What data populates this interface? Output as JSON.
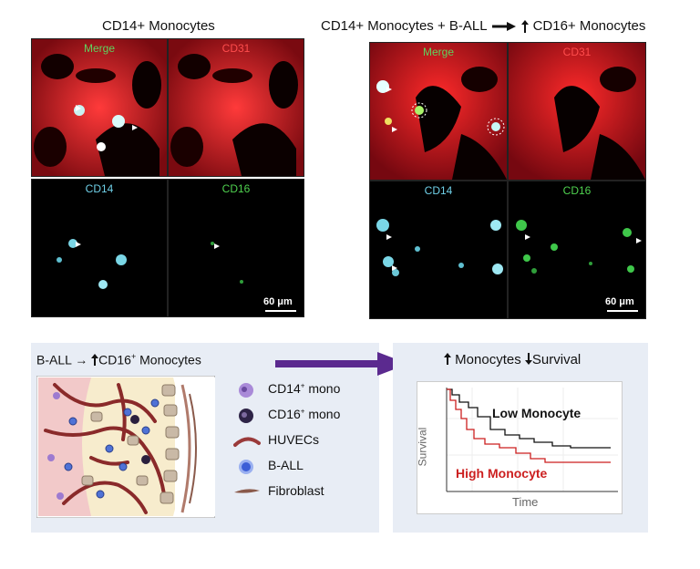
{
  "left_group": {
    "title": "CD14+ Monocytes",
    "panels": {
      "merge": "Merge",
      "cd31": "CD31",
      "cd14": "CD14",
      "cd16": "CD16"
    },
    "scale": "60 μm"
  },
  "right_group": {
    "title_prefix": "CD14+ Monocytes + B-ALL",
    "title_suffix": "CD16+ Monocytes",
    "panels": {
      "merge": "Merge",
      "cd31": "CD31",
      "cd14": "CD14",
      "cd16": "CD16"
    },
    "scale": "60 μm"
  },
  "schematic": {
    "heading_prefix": "B-ALL →",
    "heading_main": "CD16",
    "heading_sup": "+",
    "heading_rest": " Monocytes",
    "legend": [
      {
        "text": "CD14",
        "sup": "+",
        "rest": " mono",
        "icon": "cd14-mono-icon"
      },
      {
        "text": "CD16",
        "sup": "+",
        "rest": " mono",
        "icon": "cd16-mono-icon"
      },
      {
        "text": "HUVECs",
        "sup": "",
        "rest": "",
        "icon": "huvec-icon"
      },
      {
        "text": "B-ALL",
        "sup": "",
        "rest": "",
        "icon": "b-all-icon"
      },
      {
        "text": "Fibroblast",
        "sup": "",
        "rest": "",
        "icon": "fibroblast-icon"
      }
    ]
  },
  "survival": {
    "heading_a": "Monocytes",
    "heading_b": "Survival",
    "ylabel": "Survival",
    "xlabel": "Time",
    "low_label": "Low Monocyte",
    "high_label": "High Monocyte",
    "colors": {
      "low": "#111111",
      "high": "#cc1f1f"
    }
  },
  "colors": {
    "arrow": "#5b2a8f",
    "box_bg": "#e8edf5"
  }
}
